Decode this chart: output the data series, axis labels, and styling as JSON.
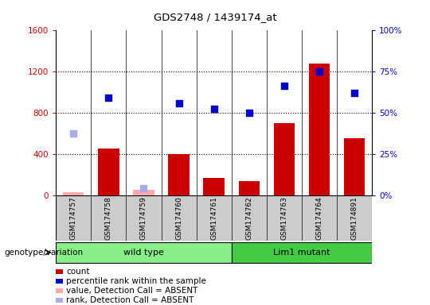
{
  "title": "GDS2748 / 1439174_at",
  "samples": [
    "GSM174757",
    "GSM174758",
    "GSM174759",
    "GSM174760",
    "GSM174761",
    "GSM174762",
    "GSM174763",
    "GSM174764",
    "GSM174891"
  ],
  "counts": [
    30,
    450,
    50,
    400,
    170,
    140,
    700,
    1280,
    550
  ],
  "counts_absent": [
    true,
    false,
    true,
    false,
    false,
    false,
    false,
    false,
    false
  ],
  "percentile_ranks": [
    null,
    950,
    null,
    890,
    840,
    800,
    1060,
    1200,
    990
  ],
  "percentile_ranks_absent": [
    600,
    null,
    70,
    null,
    null,
    null,
    null,
    null,
    null
  ],
  "wild_type_indices": [
    0,
    1,
    2,
    3,
    4
  ],
  "mutant_indices": [
    5,
    6,
    7,
    8
  ],
  "wild_type_label": "wild type",
  "mutant_label": "Lim1 mutant",
  "genotype_label": "genotype/variation",
  "ylim_left": [
    0,
    1600
  ],
  "ylim_right": [
    0,
    100
  ],
  "yticks_left": [
    0,
    400,
    800,
    1200,
    1600
  ],
  "yticks_right": [
    0,
    25,
    50,
    75,
    100
  ],
  "bar_color_present": "#cc0000",
  "bar_color_absent": "#ffaaaa",
  "dot_color_present": "#0000cc",
  "dot_color_absent": "#aaaaee",
  "wt_bg_color": "#88ee88",
  "mut_bg_color": "#44cc44",
  "header_bg_color": "#cccccc",
  "legend_items": [
    {
      "color": "#cc0000",
      "label": "count"
    },
    {
      "color": "#0000cc",
      "label": "percentile rank within the sample"
    },
    {
      "color": "#ffaaaa",
      "label": "value, Detection Call = ABSENT"
    },
    {
      "color": "#aaaaee",
      "label": "rank, Detection Call = ABSENT"
    }
  ]
}
